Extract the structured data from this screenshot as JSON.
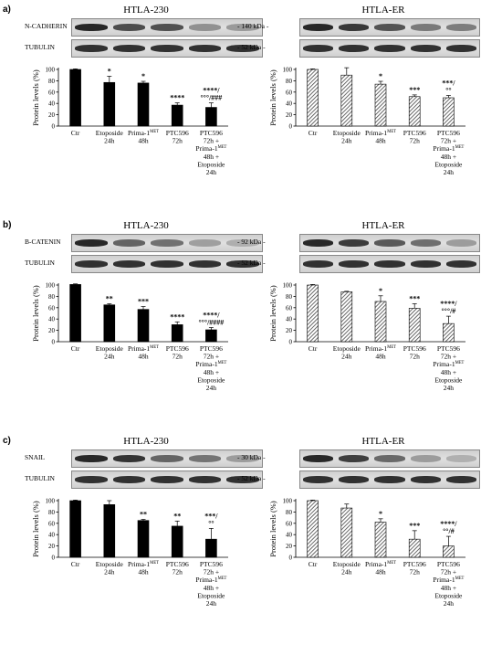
{
  "colors": {
    "bar_solid": "#000000",
    "bar_hatch": "#444444",
    "band_dark": "#3a3a3a",
    "band_bg": "#d6d6d6"
  },
  "panels": [
    {
      "letter": "a)",
      "cell_lines": [
        "HTLA-230",
        "HTLA-ER"
      ],
      "blot_labels": [
        "N-CADHERIN",
        "TUBULIN"
      ],
      "kda_labels": [
        "- 140 kDa -",
        "- 52 kDa -"
      ],
      "band_intensity": [
        [
          1.0,
          0.78,
          0.76,
          0.38,
          0.33
        ],
        [
          1.0,
          0.9,
          0.74,
          0.52,
          0.5
        ]
      ]
    },
    {
      "letter": "b)",
      "cell_lines": [
        "HTLA-230",
        "HTLA-ER"
      ],
      "blot_labels": [
        "B-CATENIN",
        "TUBULIN"
      ],
      "kda_labels": [
        "- 92 kDa -",
        "- 52 kDa -"
      ],
      "band_intensity": [
        [
          1.0,
          0.65,
          0.57,
          0.3,
          0.21
        ],
        [
          1.0,
          0.88,
          0.71,
          0.59,
          0.32
        ]
      ]
    },
    {
      "letter": "c)",
      "cell_lines": [
        "HTLA-230",
        "HTLA-ER"
      ],
      "blot_labels": [
        "SNAIL",
        "TUBULIN"
      ],
      "kda_labels": [
        "- 30 kDa -",
        "- 52 kDa -"
      ],
      "band_intensity": [
        [
          1.0,
          0.93,
          0.65,
          0.55,
          0.32
        ],
        [
          1.0,
          0.87,
          0.62,
          0.32,
          0.2
        ]
      ]
    }
  ],
  "chart_data": [
    {
      "type": "bar",
      "panel": "a",
      "cell_line": "HTLA-230",
      "fill": "solid",
      "ylabel": "Protein levels (%)",
      "ylim": [
        0,
        100
      ],
      "yticks": [
        0,
        20,
        40,
        60,
        80,
        100
      ],
      "categories": [
        [
          "Ctr"
        ],
        [
          "Etoposide",
          "24h"
        ],
        [
          "Prima-1MET",
          "48h"
        ],
        [
          "PTC596",
          "72h"
        ],
        [
          "PTC596",
          "72h +",
          "Prima-1MET",
          "48h +",
          "Etoposide",
          "24h"
        ]
      ],
      "values": [
        100,
        77,
        76,
        37,
        33
      ],
      "errors": [
        1,
        11,
        3,
        4,
        8
      ],
      "annotations": [
        [
          ""
        ],
        [
          "*"
        ],
        [
          "*"
        ],
        [
          "****"
        ],
        [
          "****/",
          "°°°/###"
        ]
      ]
    },
    {
      "type": "bar",
      "panel": "a",
      "cell_line": "HTLA-ER",
      "fill": "hatched",
      "ylabel": "Protein levels (%)",
      "ylim": [
        0,
        100
      ],
      "yticks": [
        0,
        20,
        40,
        60,
        80,
        100
      ],
      "categories": [
        [
          "Ctr"
        ],
        [
          "Etoposide",
          "24h"
        ],
        [
          "Prima-1MET",
          "48h"
        ],
        [
          "PTC596",
          "72h"
        ],
        [
          "PTC596",
          "72h +",
          "Prima-1MET",
          "48h +",
          "Etoposide",
          "24h"
        ]
      ],
      "values": [
        100,
        90,
        74,
        52,
        50
      ],
      "errors": [
        1,
        13,
        5,
        3,
        4
      ],
      "annotations": [
        [
          ""
        ],
        [
          ""
        ],
        [
          "*"
        ],
        [
          "***"
        ],
        [
          "***/",
          "°°"
        ]
      ]
    },
    {
      "type": "bar",
      "panel": "b",
      "cell_line": "HTLA-230",
      "fill": "solid",
      "ylabel": "Protein levels (%)",
      "ylim": [
        0,
        100
      ],
      "yticks": [
        0,
        20,
        40,
        60,
        80,
        100
      ],
      "categories": [
        [
          "Ctr"
        ],
        [
          "Etoposide",
          "24h"
        ],
        [
          "Prima-1MET",
          "48h"
        ],
        [
          "PTC596",
          "72h"
        ],
        [
          "PTC596",
          "72h +",
          "Prima-1MET",
          "48h +",
          "Etoposide",
          "24h"
        ]
      ],
      "values": [
        101,
        65,
        57,
        30,
        21
      ],
      "errors": [
        1,
        2,
        5,
        5,
        4
      ],
      "annotations": [
        [
          ""
        ],
        [
          "**"
        ],
        [
          "***"
        ],
        [
          "****"
        ],
        [
          "****/",
          "°°°/####"
        ]
      ]
    },
    {
      "type": "bar",
      "panel": "b",
      "cell_line": "HTLA-ER",
      "fill": "hatched",
      "ylabel": "Protein levels (%)",
      "ylim": [
        0,
        100
      ],
      "yticks": [
        0,
        20,
        40,
        60,
        80,
        100
      ],
      "categories": [
        [
          "Ctr"
        ],
        [
          "Etoposide",
          "24h"
        ],
        [
          "Prima-1MET",
          "48h"
        ],
        [
          "PTC596",
          "72h"
        ],
        [
          "PTC596",
          "72h +",
          "Prima-1MET",
          "48h +",
          "Etoposide",
          "24h"
        ]
      ],
      "values": [
        100,
        88,
        71,
        59,
        32
      ],
      "errors": [
        1,
        1,
        10,
        8,
        13
      ],
      "annotations": [
        [
          ""
        ],
        [
          ""
        ],
        [
          "*"
        ],
        [
          "***"
        ],
        [
          "****/",
          "°°°/#"
        ]
      ]
    },
    {
      "type": "bar",
      "panel": "c",
      "cell_line": "HTLA-230",
      "fill": "solid",
      "ylabel": "Protein levels (%)",
      "ylim": [
        0,
        100
      ],
      "yticks": [
        0,
        20,
        40,
        60,
        80,
        100
      ],
      "categories": [
        [
          "Ctr"
        ],
        [
          "Etoposide",
          "24h"
        ],
        [
          "Prima-1MET",
          "48h"
        ],
        [
          "PTC596",
          "72h"
        ],
        [
          "PTC596",
          "72h +",
          "Prima-1MET",
          "48h +",
          "Etoposide",
          "24h"
        ]
      ],
      "values": [
        100,
        93,
        65,
        55,
        32
      ],
      "errors": [
        1,
        7,
        2,
        9,
        19
      ],
      "annotations": [
        [
          ""
        ],
        [
          ""
        ],
        [
          "**"
        ],
        [
          "**"
        ],
        [
          "***/",
          "°°"
        ]
      ]
    },
    {
      "type": "bar",
      "panel": "c",
      "cell_line": "HTLA-ER",
      "fill": "hatched",
      "ylabel": "Protein levels (%)",
      "ylim": [
        0,
        100
      ],
      "yticks": [
        0,
        20,
        40,
        60,
        80,
        100
      ],
      "categories": [
        [
          "Ctr"
        ],
        [
          "Etoposide",
          "24h"
        ],
        [
          "Prima-1MET",
          "48h"
        ],
        [
          "PTC596",
          "72h"
        ],
        [
          "PTC596",
          "72h +",
          "Prima-1MET",
          "48h +",
          "Etoposide",
          "24h"
        ]
      ],
      "values": [
        100,
        87,
        62,
        32,
        20
      ],
      "errors": [
        1,
        7,
        6,
        15,
        17
      ],
      "annotations": [
        [
          ""
        ],
        [
          ""
        ],
        [
          "*"
        ],
        [
          "***"
        ],
        [
          "****/",
          "°°/#"
        ]
      ]
    }
  ]
}
